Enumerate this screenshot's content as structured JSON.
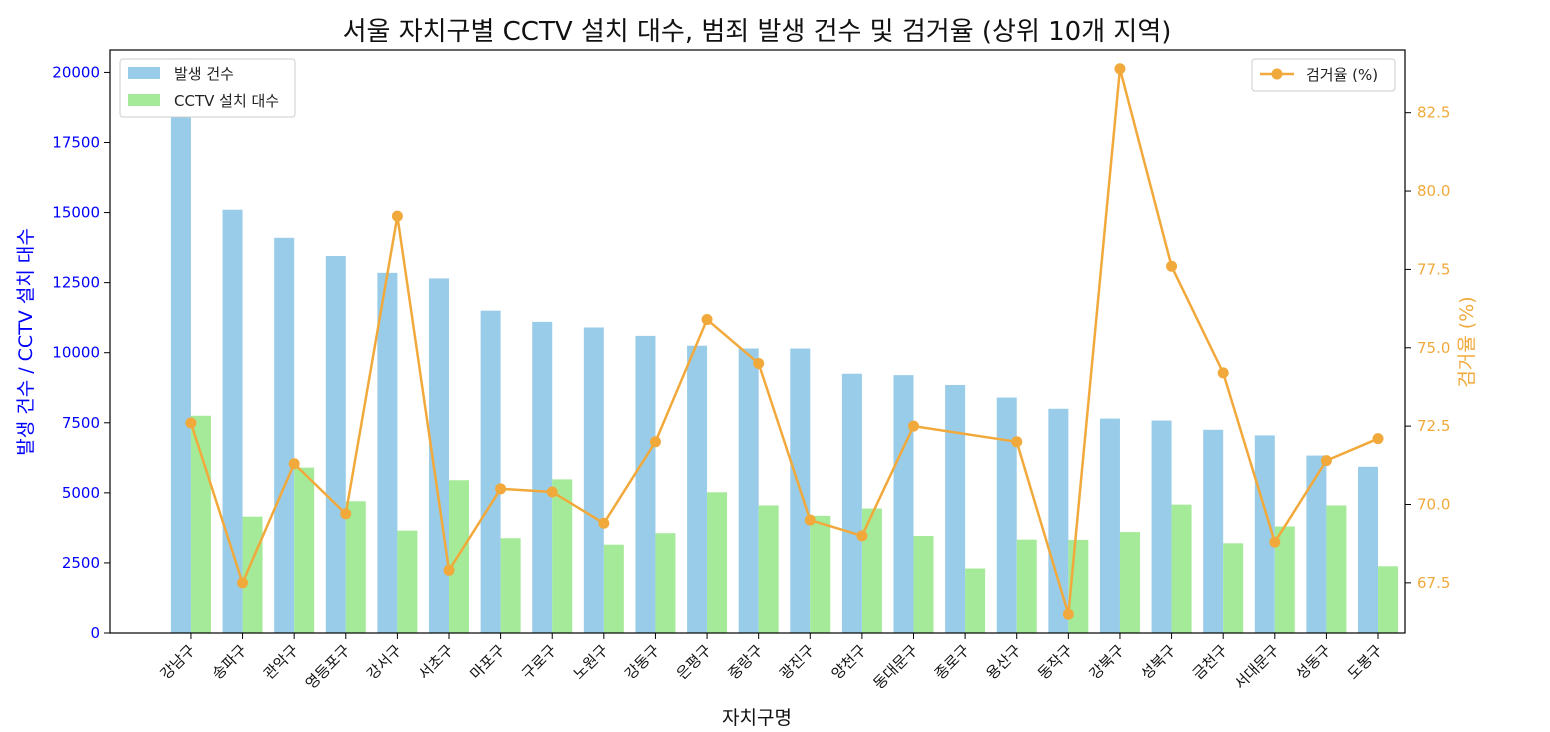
{
  "chart_data": {
    "type": "bar",
    "title": "서울 자치구별 CCTV 설치 대수, 범죄 발생 건수 및 검거율 (상위 10개 지역)",
    "xlabel": "자치구명",
    "ylabel_left": "발생 건수 / CCTV 설치 대수",
    "ylabel_right": "검거율 (%)",
    "categories": [
      "강남구",
      "송파구",
      "관악구",
      "영등포구",
      "강서구",
      "서초구",
      "마포구",
      "구로구",
      "노원구",
      "강동구",
      "은평구",
      "중랑구",
      "광진구",
      "양천구",
      "동대문구",
      "종로구",
      "용산구",
      "동작구",
      "강북구",
      "성북구",
      "금천구",
      "서대문구",
      "성동구",
      "도봉구"
    ],
    "series": [
      {
        "name": "발생 건수",
        "type": "bar",
        "axis": "left",
        "color": "#99CCE8",
        "values": [
          20500,
          15100,
          14100,
          13450,
          12850,
          12650,
          11500,
          11100,
          10900,
          10600,
          10250,
          10150,
          10150,
          9250,
          9200,
          8850,
          8400,
          8000,
          7650,
          7580,
          7250,
          7050,
          6330,
          5930
        ]
      },
      {
        "name": "CCTV 설치 대수",
        "type": "bar",
        "axis": "left",
        "color": "#A5EA98",
        "values": [
          7750,
          4150,
          5900,
          4700,
          3650,
          5450,
          3380,
          5480,
          3150,
          3560,
          5020,
          4550,
          4180,
          4440,
          3460,
          2300,
          3330,
          3320,
          3600,
          4580,
          3200,
          3800,
          4550,
          2380
        ]
      },
      {
        "name": "검거율 (%)",
        "type": "line",
        "axis": "right",
        "color": "#F2A93B",
        "values": [
          72.6,
          67.5,
          71.3,
          69.7,
          79.2,
          67.9,
          70.5,
          70.4,
          69.4,
          72.0,
          75.9,
          74.5,
          69.5,
          69.0,
          72.5,
          null,
          72.0,
          66.5,
          83.9,
          77.6,
          74.2,
          68.8,
          71.4,
          72.1
        ]
      }
    ],
    "ylim_left": [
      0,
      20800
    ],
    "ylim_right": [
      65.9,
      84.5
    ],
    "yticks_left": [
      "0",
      "2500",
      "5000",
      "7500",
      "10000",
      "12500",
      "15000",
      "17500",
      "20000"
    ],
    "yticks_right": [
      "67.5",
      "70.0",
      "72.5",
      "75.0",
      "77.5",
      "80.0",
      "82.5"
    ],
    "legend_left_placement": "top-left",
    "legend_right_placement": "top-right",
    "grid": false,
    "left_axis_color": "#0000FF",
    "right_axis_color": "#F2A93B"
  }
}
